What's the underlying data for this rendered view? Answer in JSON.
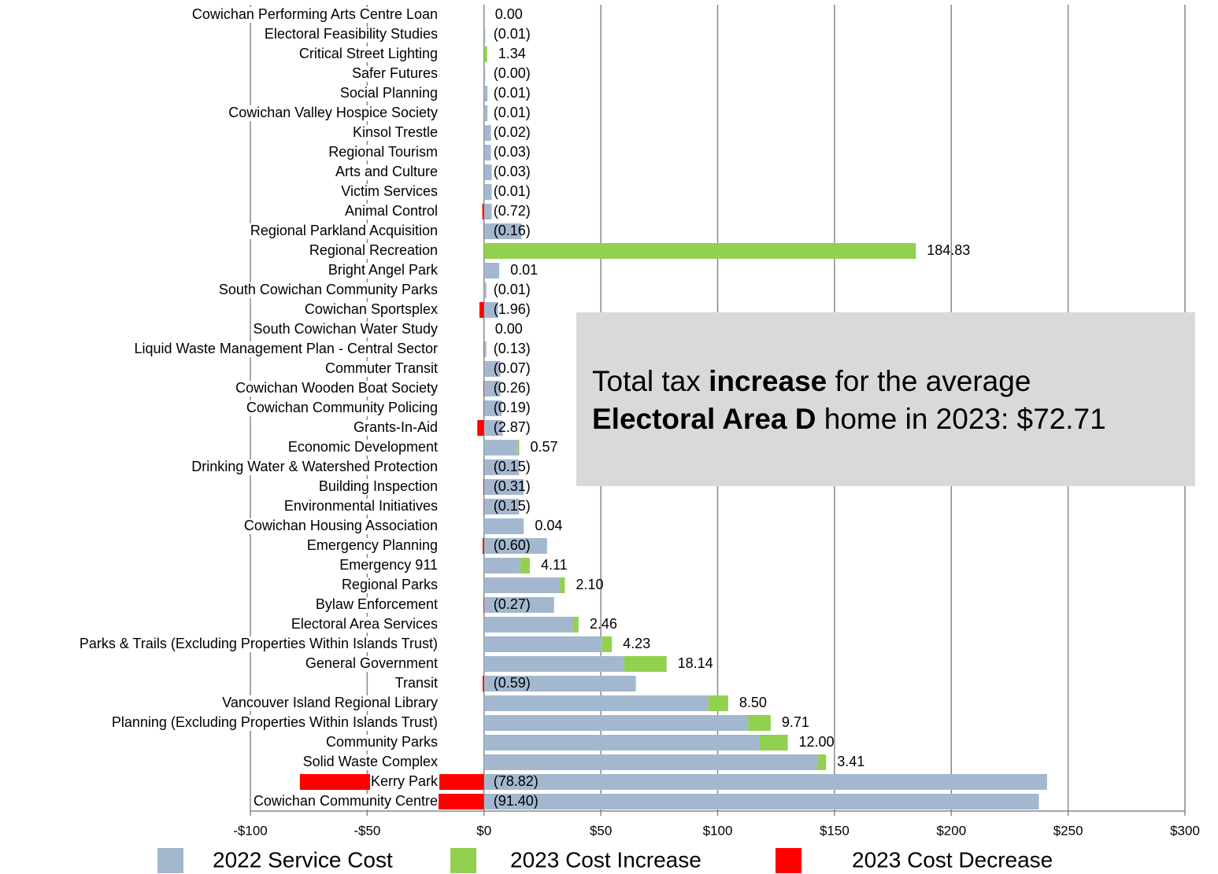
{
  "chart_data": {
    "type": "stacked-bar-horizontal",
    "categories": [
      "Cowichan Performing Arts Centre Loan",
      "Electoral Feasibility Studies",
      "Critical Street Lighting",
      "Safer Futures",
      "Social Planning",
      "Cowichan Valley Hospice Society",
      "Kinsol Trestle",
      "Regional Tourism",
      "Arts and Culture",
      "Victim Services",
      "Animal Control",
      "Regional Parkland Acquisition",
      "Regional Recreation",
      "Bright Angel Park",
      "South Cowichan Community Parks",
      "Cowichan Sportsplex",
      "South Cowichan Water Study",
      "Liquid Waste Management Plan - Central Sector",
      "Commuter Transit",
      "Cowichan Wooden Boat Society",
      "Cowichan Community Policing",
      "Grants-In-Aid",
      "Economic Development",
      "Drinking Water & Watershed Protection",
      "Building Inspection",
      "Environmental Initiatives",
      "Cowichan Housing Association",
      "Emergency Planning",
      "Emergency 911",
      "Regional Parks",
      "Bylaw Enforcement",
      "Electoral Area Services",
      "Parks & Trails (Excluding Properties Within Islands Trust)",
      "General Government",
      "Transit",
      "Vancouver Island Regional Library",
      "Planning (Excluding Properties Within Islands Trust)",
      "Community Parks",
      "Solid Waste Complex",
      "Kerry Park",
      "Cowichan Community Centre"
    ],
    "series": [
      {
        "name": "2022 Service Cost",
        "color": "#a3b8cf",
        "values": [
          0,
          0.5,
          0,
          0.5,
          1.5,
          1.5,
          3,
          3,
          3.3,
          3.3,
          3.3,
          16,
          0,
          6.5,
          1,
          6,
          0,
          1,
          7,
          7,
          7.5,
          8,
          14.5,
          15,
          17,
          15,
          17,
          27,
          15.5,
          32.5,
          30,
          38,
          50.5,
          60,
          65,
          96,
          113,
          118,
          143,
          241,
          237.5
        ]
      },
      {
        "name": "2023 Cost Increase",
        "color": "#92d050",
        "values": [
          0,
          null,
          1.34,
          null,
          null,
          null,
          null,
          null,
          null,
          null,
          null,
          null,
          184.83,
          0.01,
          null,
          null,
          0,
          null,
          null,
          null,
          null,
          null,
          0.57,
          null,
          null,
          null,
          0.04,
          null,
          4.11,
          2.1,
          null,
          2.46,
          4.23,
          18.14,
          null,
          8.5,
          9.71,
          12,
          3.41,
          null,
          null
        ],
        "value_labels": [
          "0.00",
          null,
          "1.34",
          null,
          null,
          null,
          null,
          null,
          null,
          null,
          null,
          null,
          "184.83",
          "0.01",
          null,
          null,
          "0.00",
          null,
          null,
          null,
          null,
          null,
          "0.57",
          null,
          null,
          null,
          "0.04",
          null,
          "4.11",
          "2.10",
          null,
          "2.46",
          "4.23",
          "18.14",
          null,
          "8.50",
          "9.71",
          "12.00",
          "3.41",
          null,
          null
        ]
      },
      {
        "name": "2023 Cost Decrease",
        "color": "#ff0000",
        "values": [
          null,
          -0.01,
          null,
          0,
          -0.01,
          -0.01,
          -0.02,
          -0.03,
          -0.03,
          -0.01,
          -0.72,
          -0.16,
          null,
          null,
          -0.01,
          -1.96,
          null,
          -0.13,
          -0.07,
          -0.26,
          -0.19,
          -2.87,
          null,
          -0.15,
          -0.31,
          -0.15,
          null,
          -0.6,
          null,
          null,
          -0.27,
          null,
          null,
          null,
          -0.59,
          null,
          null,
          null,
          null,
          -78.82,
          -91.4
        ],
        "value_labels": [
          null,
          "(0.01)",
          null,
          "(0.00)",
          "(0.01)",
          "(0.01)",
          "(0.02)",
          "(0.03)",
          "(0.03)",
          "(0.01)",
          "(0.72)",
          "(0.16)",
          null,
          null,
          "(0.01)",
          "(1.96)",
          null,
          "(0.13)",
          "(0.07)",
          "(0.26)",
          "(0.19)",
          "(2.87)",
          null,
          "(0.15)",
          "(0.31)",
          "(0.15)",
          null,
          "(0.60)",
          null,
          null,
          "(0.27)",
          null,
          null,
          null,
          "(0.59)",
          null,
          null,
          null,
          null,
          "(78.82)",
          "(91.40)"
        ]
      }
    ],
    "xlim": [
      -100,
      300
    ],
    "xticks": [
      {
        "value": -100,
        "label": "-$100"
      },
      {
        "value": -50,
        "label": "-$50"
      },
      {
        "value": 0,
        "label": "$0"
      },
      {
        "value": 50,
        "label": "$50"
      },
      {
        "value": 100,
        "label": "$100"
      },
      {
        "value": 150,
        "label": "$150"
      },
      {
        "value": 200,
        "label": "$200"
      },
      {
        "value": 250,
        "label": "$250"
      },
      {
        "value": 300,
        "label": "$300"
      }
    ],
    "grid": true,
    "legend": "bottom",
    "annotation": [
      "Total tax ",
      "increase",
      " for the average",
      "Electoral Area D",
      " home in 2023: $72.71"
    ]
  }
}
